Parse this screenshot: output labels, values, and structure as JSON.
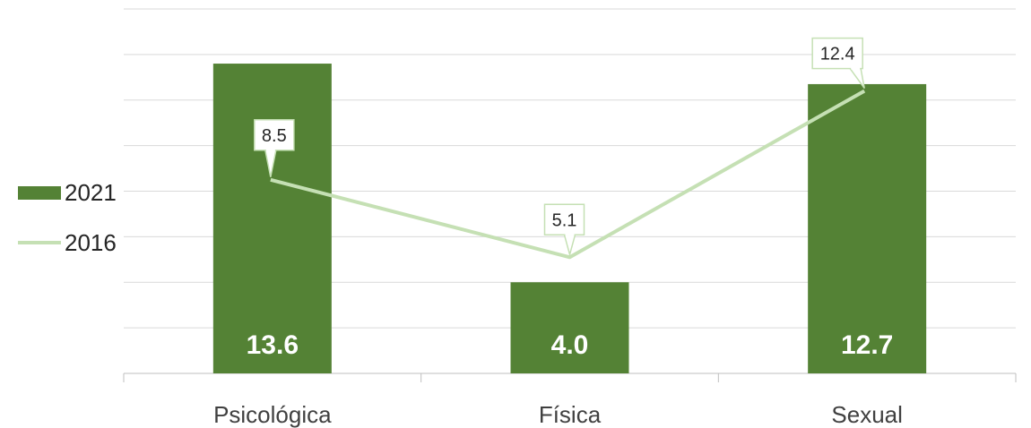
{
  "chart_data": {
    "type": "bar",
    "categories": [
      "Psicológica",
      "Física",
      "Sexual"
    ],
    "series": [
      {
        "name": "2021",
        "type": "bar",
        "values": [
          13.6,
          4.0,
          12.7
        ],
        "color": "#548235",
        "labels": [
          "13.6",
          "4.0",
          "12.7"
        ]
      },
      {
        "name": "2016",
        "type": "line",
        "values": [
          8.5,
          5.1,
          12.4
        ],
        "color": "#c5e0b4",
        "labels": [
          "8.5",
          "5.1",
          "12.4"
        ]
      }
    ],
    "ylim": [
      0,
      16
    ],
    "grid": true,
    "legend_position": "left"
  }
}
